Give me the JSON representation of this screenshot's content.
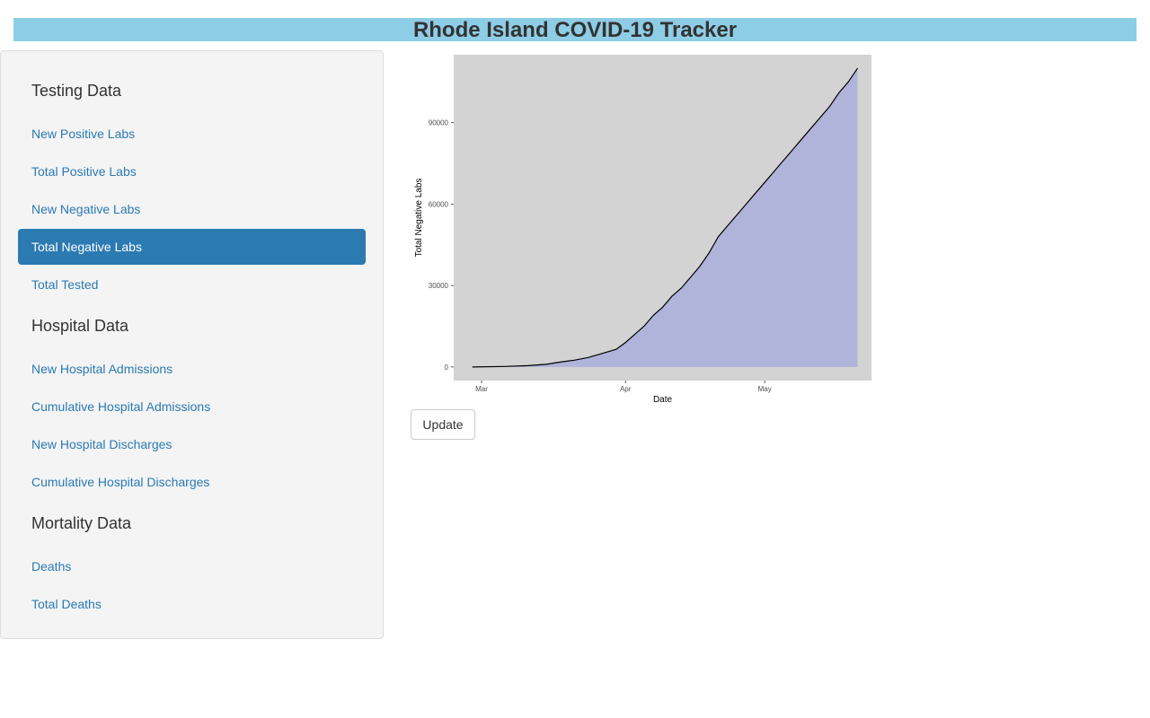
{
  "header": {
    "title": "Rhode Island COVID-19 Tracker"
  },
  "sidebar": {
    "sections": [
      {
        "heading": "Testing Data",
        "items": [
          {
            "label": "New Positive Labs",
            "active": false
          },
          {
            "label": "Total Positive Labs",
            "active": false
          },
          {
            "label": "New Negative Labs",
            "active": false
          },
          {
            "label": "Total Negative Labs",
            "active": true
          },
          {
            "label": "Total Tested",
            "active": false
          }
        ]
      },
      {
        "heading": "Hospital Data",
        "items": [
          {
            "label": "New Hospital Admissions",
            "active": false
          },
          {
            "label": "Cumulative Hospital Admissions",
            "active": false
          },
          {
            "label": "New Hospital Discharges",
            "active": false
          },
          {
            "label": "Cumulative Hospital Discharges",
            "active": false
          }
        ]
      },
      {
        "heading": "Mortality Data",
        "items": [
          {
            "label": "Deaths",
            "active": false
          },
          {
            "label": "Total Deaths",
            "active": false
          }
        ]
      }
    ]
  },
  "controls": {
    "update_label": "Update"
  },
  "colors": {
    "header_bg": "#8ecde6",
    "active_bg": "#2c7ab2",
    "link": "#2a7ab3",
    "panel_bg": "#d3d3d3",
    "area_fill": "#b0b3da",
    "line": "#000000"
  },
  "chart_data": {
    "type": "area",
    "xlabel": "Date",
    "ylabel": "Total Negative Labs",
    "xticks": [
      {
        "label": "Mar",
        "date": "2020-03-01"
      },
      {
        "label": "Apr",
        "date": "2020-04-01"
      },
      {
        "label": "May",
        "date": "2020-05-01"
      }
    ],
    "yticks": [
      0,
      30000,
      60000,
      90000
    ],
    "xlim": [
      "2020-02-24",
      "2020-05-24"
    ],
    "ylim": [
      -5000,
      115000
    ],
    "grid": false,
    "series": [
      {
        "x": [
          "2020-02-28",
          "2020-03-06",
          "2020-03-11",
          "2020-03-15",
          "2020-03-18",
          "2020-03-21",
          "2020-03-24",
          "2020-03-27",
          "2020-03-30",
          "2020-04-01",
          "2020-04-03",
          "2020-04-05",
          "2020-04-07",
          "2020-04-09",
          "2020-04-11",
          "2020-04-13",
          "2020-04-15",
          "2020-04-17",
          "2020-04-19",
          "2020-04-21",
          "2020-04-23",
          "2020-04-25",
          "2020-04-27",
          "2020-04-29",
          "2020-05-01",
          "2020-05-03",
          "2020-05-05",
          "2020-05-07",
          "2020-05-09",
          "2020-05-11",
          "2020-05-13",
          "2020-05-15",
          "2020-05-17",
          "2020-05-19",
          "2020-05-21"
        ],
        "values": [
          0,
          200,
          500,
          1000,
          1800,
          2500,
          3500,
          5000,
          6500,
          9000,
          12000,
          15000,
          19000,
          22000,
          26000,
          29000,
          33000,
          37000,
          42000,
          48000,
          52000,
          56000,
          60000,
          64000,
          68000,
          72000,
          76000,
          80000,
          84000,
          88000,
          92000,
          96000,
          101000,
          105000,
          110000
        ]
      }
    ]
  }
}
